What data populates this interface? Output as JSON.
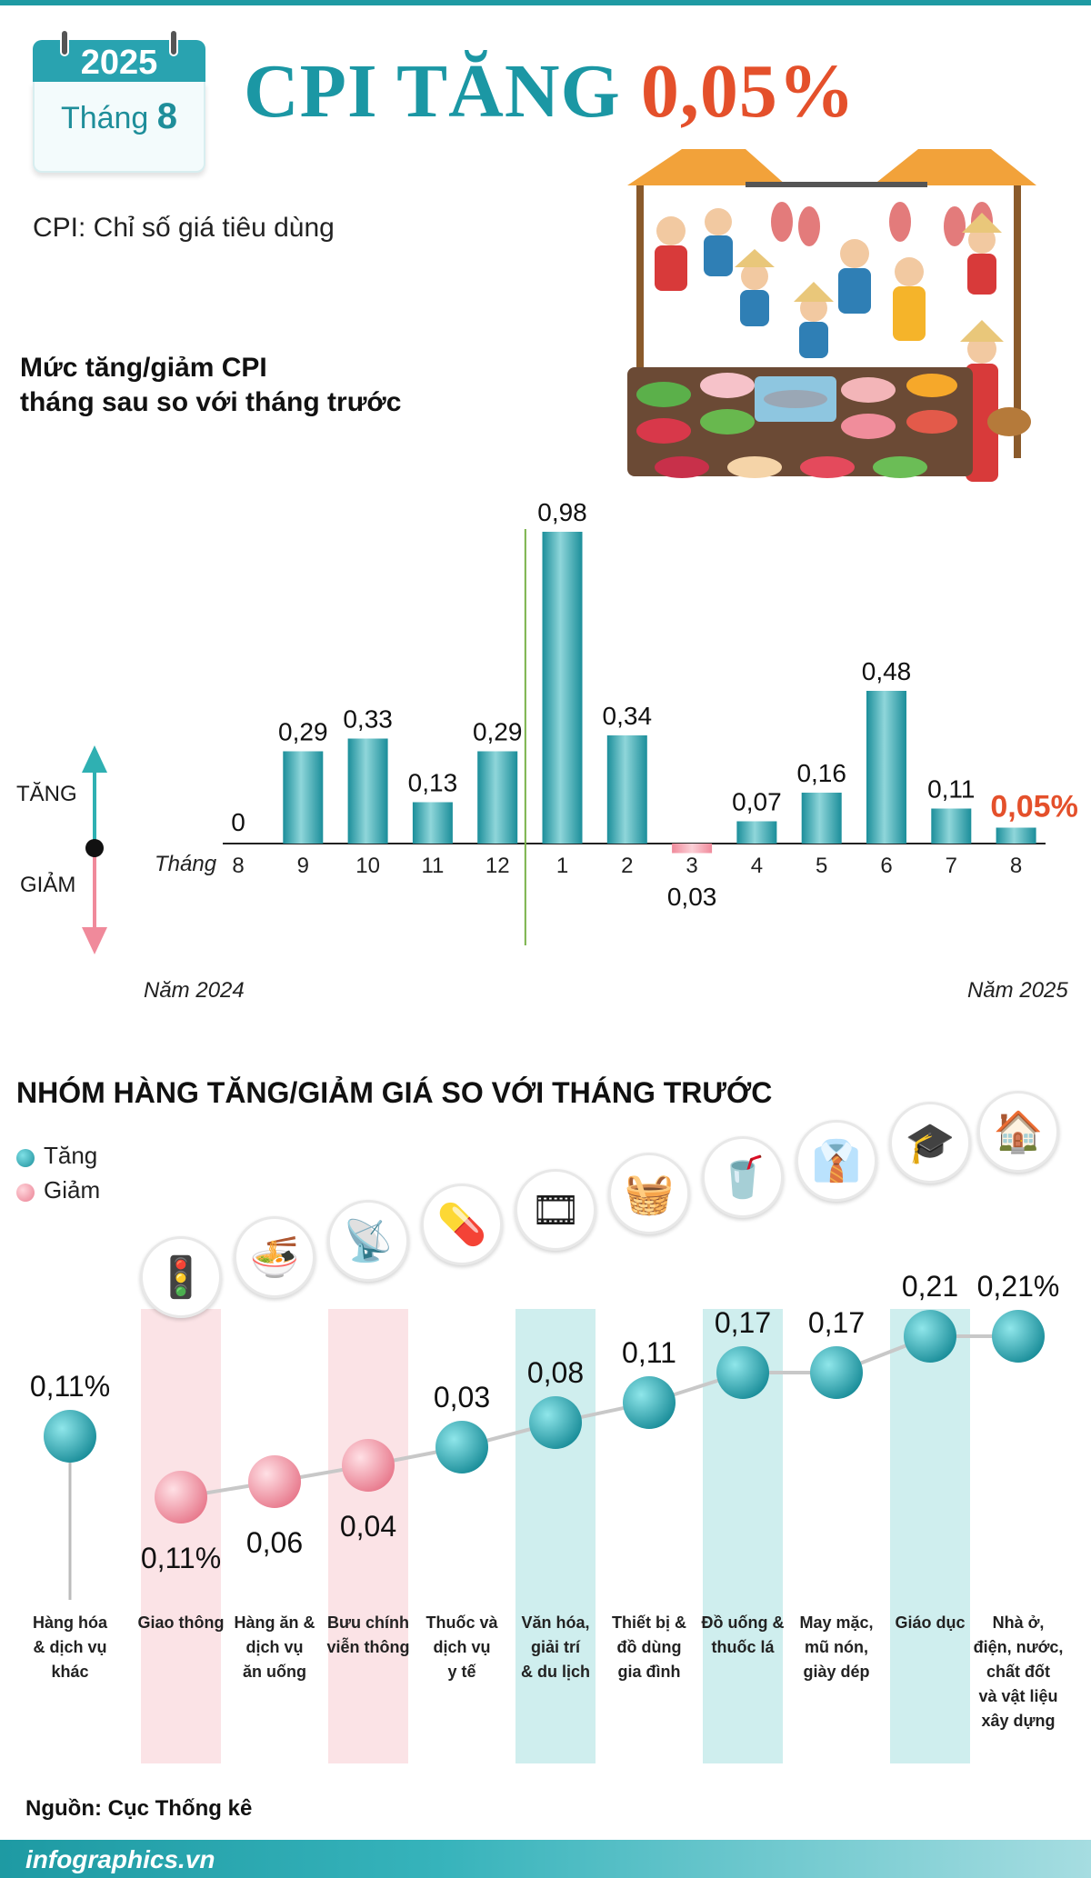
{
  "calendar": {
    "year": "2025",
    "month_label": "Tháng",
    "month_num": "8"
  },
  "title": {
    "part1": "CPI TĂNG",
    "part2": "0,05%"
  },
  "subtitle": "CPI: Chỉ số giá tiêu dùng",
  "chart_title_line1": "Mức tăng/giảm CPI",
  "chart_title_line2": "tháng sau so với tháng trước",
  "axis": {
    "month_word": "Tháng",
    "up_label": "TĂNG",
    "down_label": "GIẢM",
    "year_left": "Năm 2024",
    "year_right": "Năm 2025"
  },
  "colors": {
    "teal": "#1b97a4",
    "orange": "#e4502b",
    "pink": "#f08a9b",
    "green_divider": "#7ab24a"
  },
  "chart_data": [
    {
      "type": "bar",
      "title": "Mức tăng/giảm CPI tháng sau so với tháng trước",
      "categories": [
        "8",
        "9",
        "10",
        "11",
        "12",
        "1",
        "2",
        "3",
        "4",
        "5",
        "6",
        "7",
        "8"
      ],
      "values": [
        0,
        0.29,
        0.33,
        0.13,
        0.29,
        0.98,
        0.34,
        -0.03,
        0.07,
        0.16,
        0.48,
        0.11,
        0.05
      ],
      "labels": [
        "0",
        "0,29",
        "0,33",
        "0,13",
        "0,29",
        "0,98",
        "0,34",
        "0,03",
        "0,07",
        "0,16",
        "0,48",
        "0,11",
        "0,05%"
      ],
      "highlight_last": true,
      "ylim": [
        -0.1,
        1.0
      ]
    },
    {
      "type": "scatter",
      "title": "NHÓM HÀNG TĂNG/GIẢM GIÁ SO VỚI THÁNG TRƯỚC",
      "categories": [
        "Hàng hóa & dịch vụ khác",
        "Giao thông",
        "Hàng ăn & dịch vụ ăn uống",
        "Bưu chính viễn thông",
        "Thuốc và dịch vụ y tế",
        "Văn hóa, giải trí & du lịch",
        "Thiết bị & đồ dùng gia đình",
        "Đồ uống & thuốc lá",
        "May mặc, mũ nón, giày dép",
        "Giáo dục",
        "Nhà ở, điện, nước, chất đốt và vật liệu xây dựng"
      ],
      "values": [
        0.11,
        -0.11,
        -0.06,
        -0.04,
        0.03,
        0.08,
        0.11,
        0.17,
        0.17,
        0.21,
        0.21
      ],
      "labels": [
        "0,11%",
        "0,11%",
        "0,06",
        "0,04",
        "0,03",
        "0,08",
        "0,11",
        "0,17",
        "0,17",
        "0,21",
        "0,21%"
      ],
      "legend": [
        "Tăng",
        "Giảm"
      ]
    }
  ],
  "section2": {
    "title": "NHÓM HÀNG TĂNG/GIẢM GIÁ SO VỚI THÁNG TRƯỚC",
    "legend_up": "Tăng",
    "legend_down": "Giảm",
    "cat_lines": [
      [
        "Hàng hóa",
        "& dịch vụ",
        "khác"
      ],
      [
        "Giao thông"
      ],
      [
        "Hàng ăn &",
        "dịch vụ",
        "ăn uống"
      ],
      [
        "Bưu chính",
        "viễn thông"
      ],
      [
        "Thuốc và",
        "dịch vụ",
        "y tế"
      ],
      [
        "Văn hóa,",
        "giải trí",
        "& du lịch"
      ],
      [
        "Thiết bị &",
        "đồ dùng",
        "gia đình"
      ],
      [
        "Đồ uống &",
        "thuốc lá"
      ],
      [
        "May mặc,",
        "mũ nón,",
        "giày dép"
      ],
      [
        "Giáo dục"
      ],
      [
        "Nhà ở,",
        "điện, nước,",
        "chất đốt",
        "và vật liệu",
        "xây dựng"
      ]
    ],
    "icons": [
      "traffic-light-icon",
      "food-bowl-icon",
      "antenna-tower-icon",
      "medicine-pill-icon",
      "film-reel-icon",
      "washing-machine-icon",
      "drink-cigarette-icon",
      "shirt-shoes-icon",
      "graduation-cap-icon",
      "house-utilities-icon"
    ]
  },
  "source": {
    "label": "Nguồn:",
    "value": "Cục Thống kê"
  },
  "footer": "infographics.vn"
}
